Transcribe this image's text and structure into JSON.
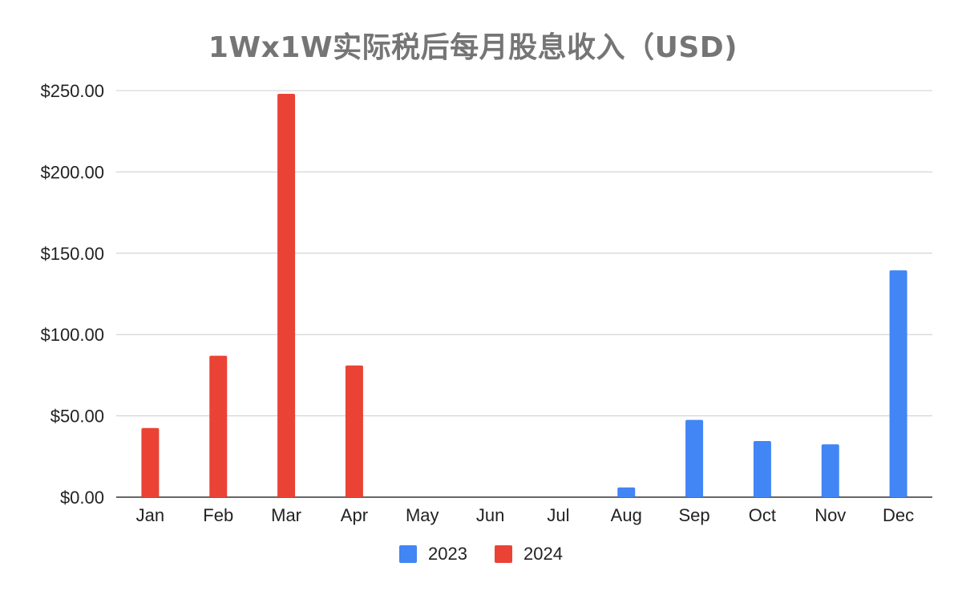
{
  "chart_data": {
    "type": "bar",
    "title": "1Wx1W实际税后每月股息收入（USD)",
    "xlabel": "",
    "ylabel": "",
    "categories": [
      "Jan",
      "Feb",
      "Mar",
      "Apr",
      "May",
      "Jun",
      "Jul",
      "Aug",
      "Sep",
      "Oct",
      "Nov",
      "Dec"
    ],
    "series": [
      {
        "name": "2023",
        "color": "#4285f4",
        "values": [
          0,
          0,
          0,
          0,
          0,
          0,
          0,
          6,
          47.5,
          34.5,
          32.5,
          139.5
        ]
      },
      {
        "name": "2024",
        "color": "#ea4335",
        "values": [
          42.5,
          87,
          248,
          81,
          0,
          0,
          0,
          0,
          0,
          0,
          0,
          0
        ]
      }
    ],
    "ylim": [
      0,
      250
    ],
    "yticks": [
      0,
      50,
      100,
      150,
      200,
      250
    ],
    "ytick_labels": [
      "$0.00",
      "$50.00",
      "$100.00",
      "$150.00",
      "$200.00",
      "$250.00"
    ],
    "grid": true,
    "legend_position": "bottom"
  }
}
